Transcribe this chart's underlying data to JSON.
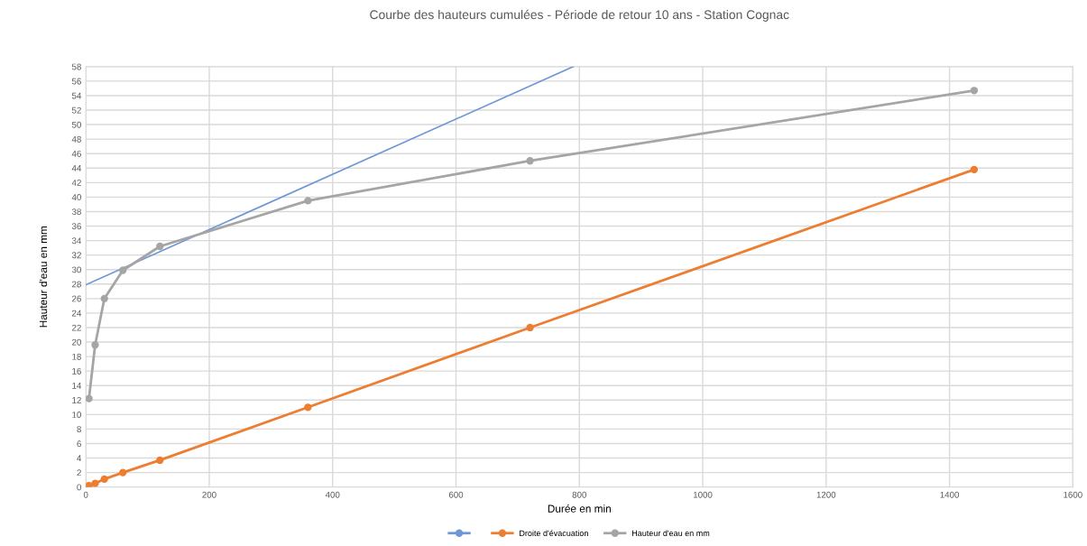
{
  "chart_data": {
    "type": "line",
    "title": "Courbe des hauteurs cumulées - Période de retour 10 ans - Station Cognac",
    "xlabel": "Durée en min",
    "ylabel": "Hauteur d'eau en mm",
    "series": [
      {
        "color": "#6f97d6",
        "marker": "none",
        "x": [
          0,
          790
        ],
        "values": [
          27.9,
          58
        ]
      },
      {
        "name": "Droite d'évacuation",
        "color": "#ed7d31",
        "marker": "circle",
        "x": [
          5,
          15,
          30,
          60,
          120,
          360,
          720,
          1440
        ],
        "values": [
          0.2,
          0.5,
          1.1,
          2,
          3.7,
          11,
          22,
          43.8
        ]
      },
      {
        "name": "Hauteur d'eau en mm",
        "color": "#a5a5a5",
        "marker": "circle",
        "x": [
          5,
          15,
          30,
          60,
          120,
          360,
          720,
          1440
        ],
        "values": [
          12.2,
          19.6,
          26,
          29.9,
          33.2,
          39.5,
          45,
          54.7
        ]
      }
    ],
    "xlim": [
      0,
      1600
    ],
    "xticks": [
      0,
      200,
      400,
      600,
      800,
      1000,
      1200,
      1400,
      1600
    ],
    "ylim": [
      0,
      58
    ],
    "yticks": [
      0,
      2,
      4,
      6,
      8,
      10,
      12,
      14,
      16,
      18,
      20,
      22,
      24,
      26,
      28,
      30,
      32,
      34,
      36,
      38,
      40,
      42,
      44,
      46,
      48,
      50,
      52,
      54,
      56,
      58
    ],
    "grid": true,
    "legend": "bottom"
  }
}
